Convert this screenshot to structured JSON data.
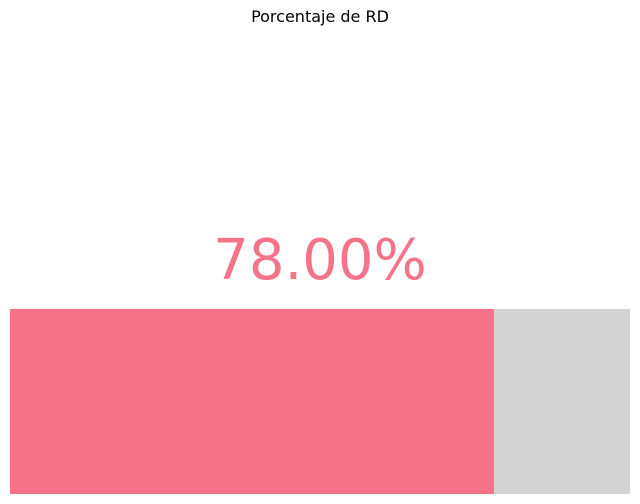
{
  "chart_data": {
    "type": "bar",
    "title": "Porcentaje de RD",
    "value": 78.0,
    "value_label": "78.00%",
    "max": 100,
    "colors": {
      "fill": "#f7738a",
      "remainder": "#d3d3d3",
      "label": "#f7738a"
    }
  }
}
